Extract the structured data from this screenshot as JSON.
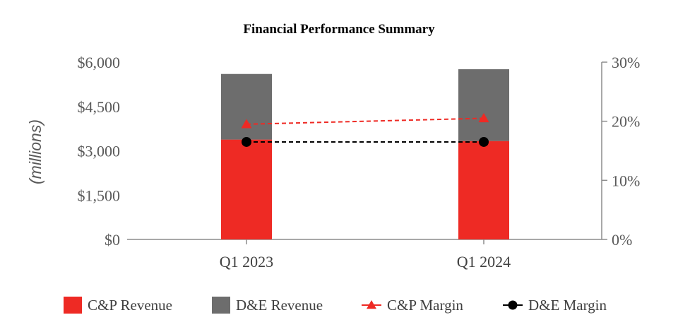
{
  "chart_data": {
    "type": "bar",
    "title": "Financial Performance Summary",
    "ylabel": "(millions)",
    "categories": [
      "Q1 2023",
      "Q1 2024"
    ],
    "left_axis": {
      "ylim": [
        0,
        6000
      ],
      "ticks": [
        0,
        1500,
        3000,
        4500,
        6000
      ],
      "tick_labels": [
        "$0",
        "$1,500",
        "$3,000",
        "$4,500",
        "$6,000"
      ]
    },
    "right_axis": {
      "ylim": [
        0,
        30
      ],
      "ticks": [
        0,
        10,
        20,
        30
      ],
      "tick_labels": [
        "0%",
        "10%",
        "20%",
        "30%"
      ]
    },
    "series": [
      {
        "name": "C&P Revenue",
        "kind": "bar",
        "stack": "revenue",
        "axis": "left",
        "color": "#ee2a24",
        "values": [
          3380,
          3330
        ]
      },
      {
        "name": "D&E Revenue",
        "kind": "bar",
        "stack": "revenue",
        "axis": "left",
        "color": "#6d6d6d",
        "values": [
          2220,
          2430
        ]
      },
      {
        "name": "C&P Margin",
        "kind": "line",
        "marker": "triangle",
        "dashed": true,
        "axis": "right",
        "color": "#ee2a24",
        "values": [
          19.5,
          20.5
        ]
      },
      {
        "name": "D&E Margin",
        "kind": "line",
        "marker": "circle",
        "dashed": true,
        "axis": "right",
        "color": "#000000",
        "values": [
          16.5,
          16.5
        ]
      }
    ],
    "legend_position": "bottom",
    "grid": false
  }
}
